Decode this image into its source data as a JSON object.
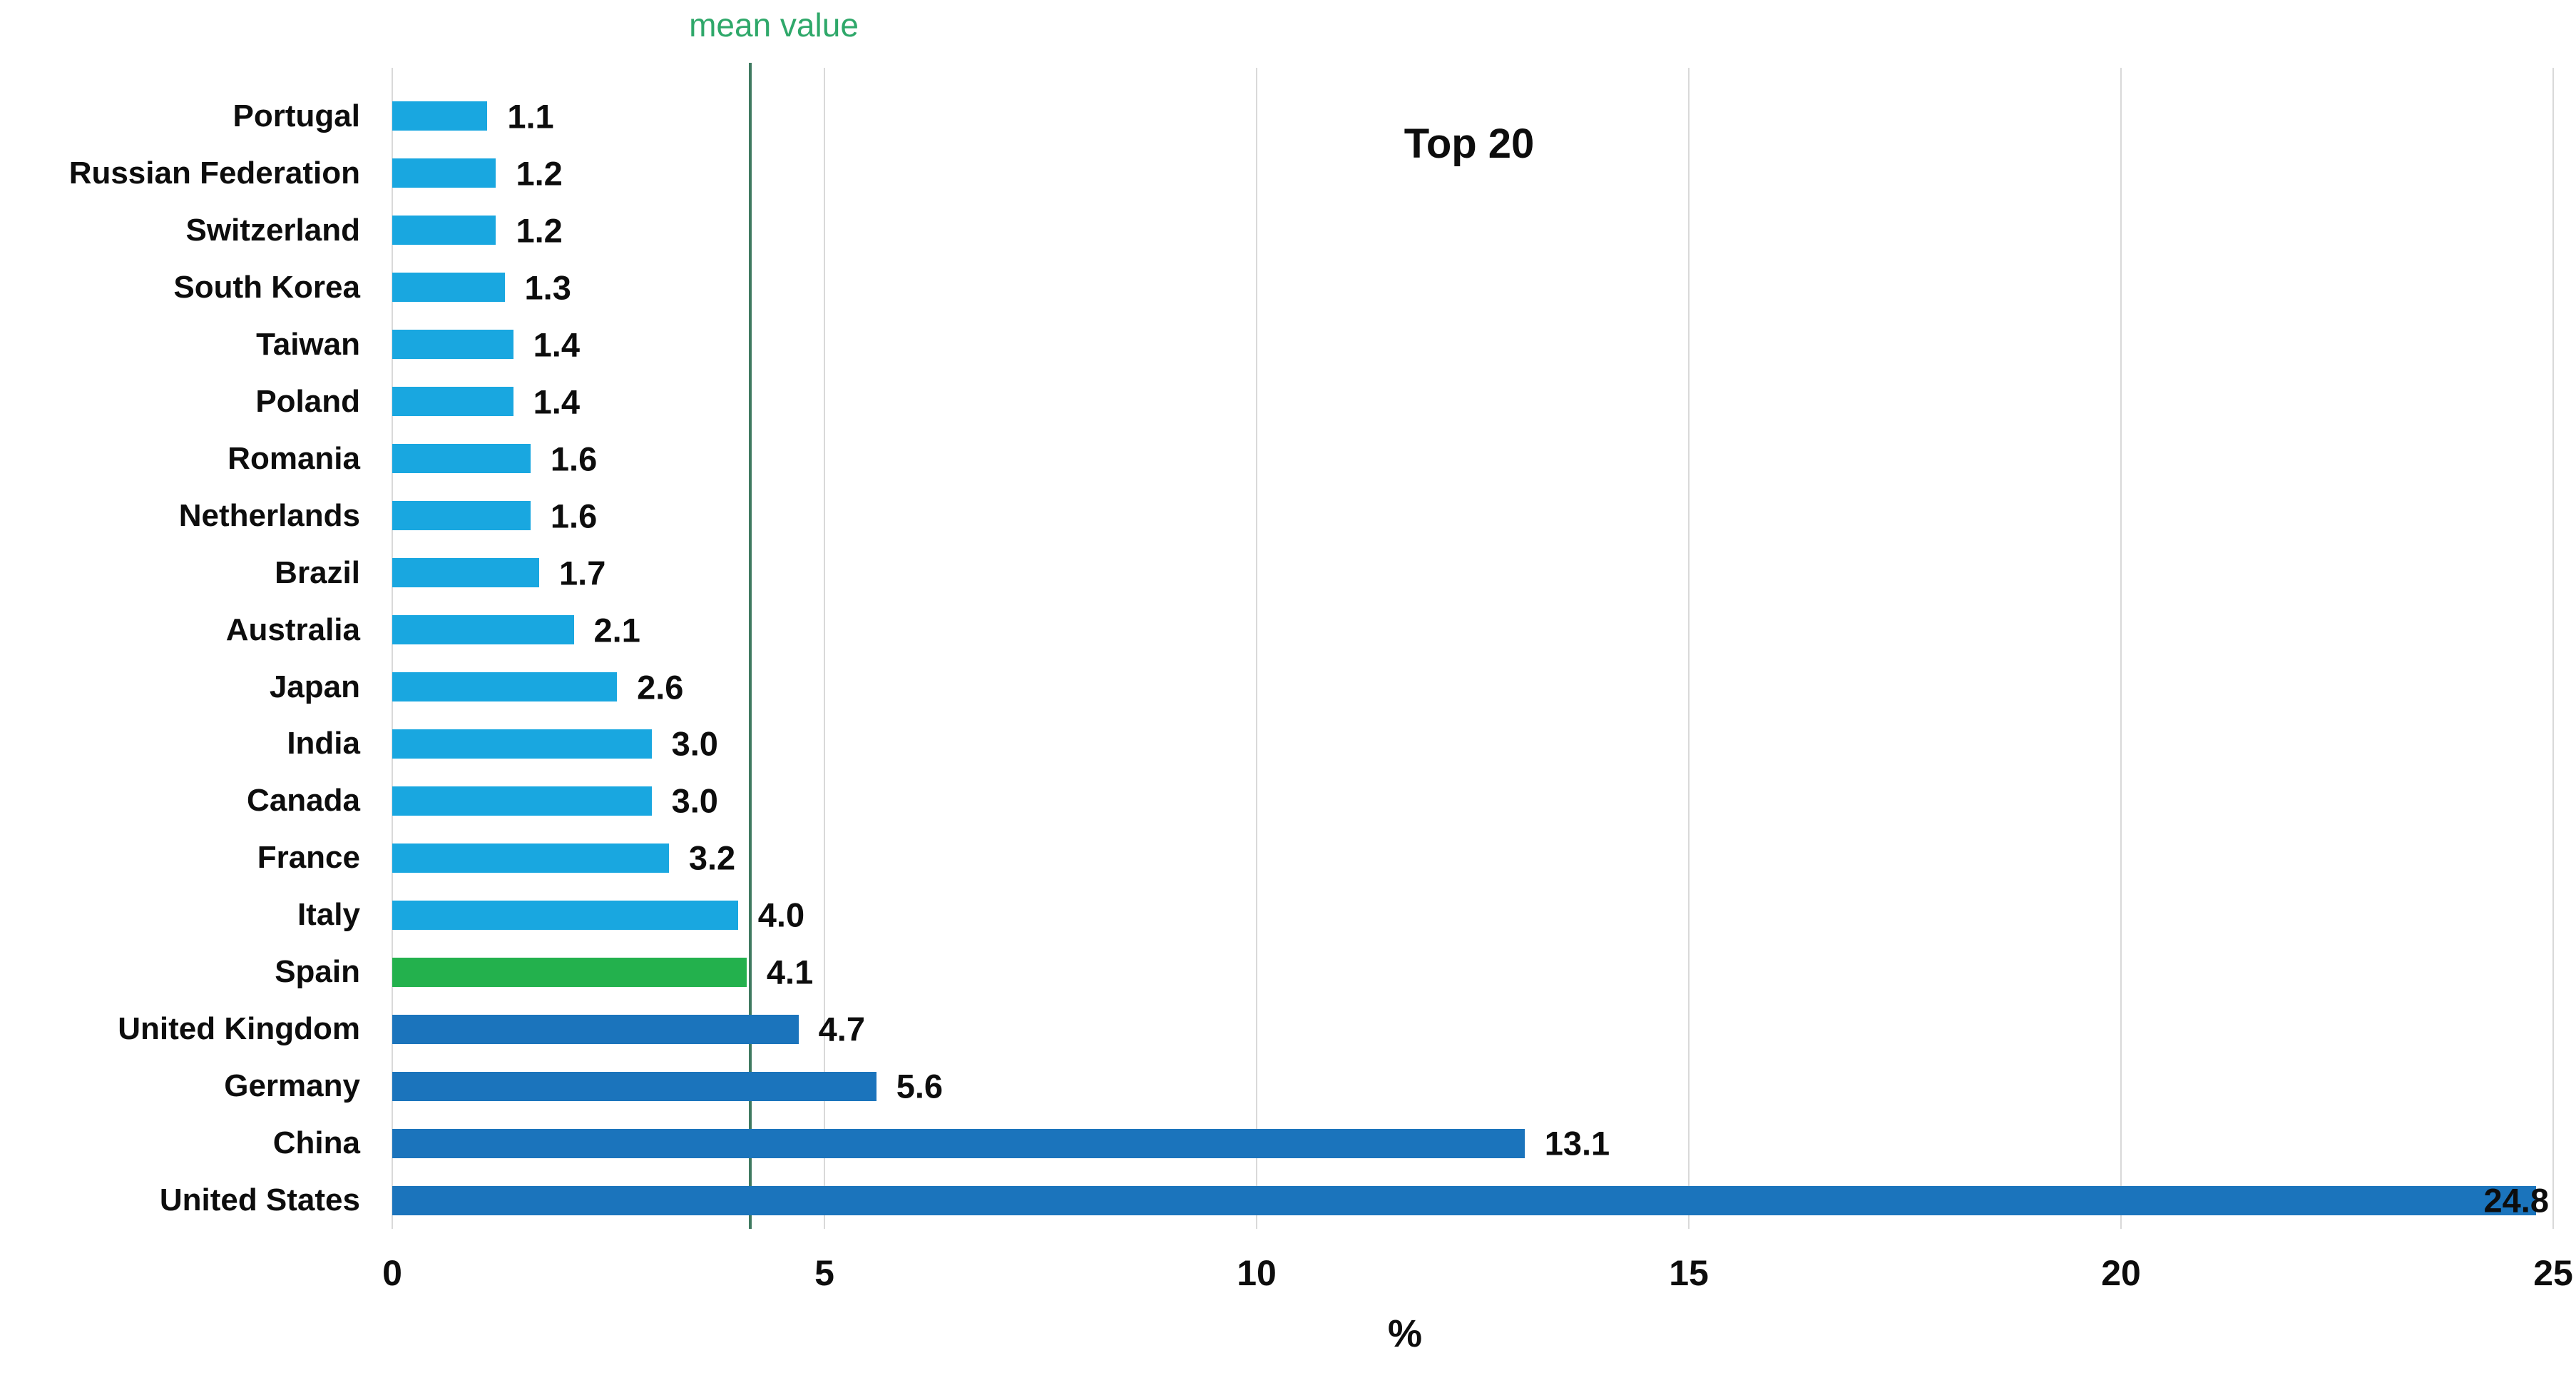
{
  "colors": {
    "light": "#19A7E0",
    "dark": "#1B74BC",
    "green": "#23B14D",
    "mean_line": "#3F7A60",
    "mean_text": "#2FA86A",
    "gridline": "#D9D9D9",
    "text": "#0D0D0D",
    "background": "#FFFFFF"
  },
  "chart_data": {
    "type": "bar",
    "orientation": "horizontal",
    "title": "Top 20",
    "xlabel": "%",
    "xlim": [
      0,
      25
    ],
    "x_ticks": [
      0,
      5,
      10,
      15,
      20,
      25
    ],
    "grid": "vertical",
    "legend": "none",
    "mean_line": {
      "label": "mean value",
      "value": 4.14
    },
    "categories": [
      "Portugal",
      "Russian Federation",
      "Switzerland",
      "South Korea",
      "Taiwan",
      "Poland",
      "Romania",
      "Netherlands",
      "Brazil",
      "Australia",
      "Japan",
      "India",
      "Canada",
      "France",
      "Italy",
      "Spain",
      "United Kingdom",
      "Germany",
      "China",
      "United States"
    ],
    "values": [
      1.1,
      1.2,
      1.2,
      1.3,
      1.4,
      1.4,
      1.6,
      1.6,
      1.7,
      2.1,
      2.6,
      3.0,
      3.0,
      3.2,
      4.0,
      4.1,
      4.7,
      5.6,
      13.1,
      24.8
    ],
    "value_labels": [
      "1.1",
      "1.2",
      "1.2",
      "1.3",
      "1.4",
      "1.4",
      "1.6",
      "1.6",
      "1.7",
      "2.1",
      "2.6",
      "3.0",
      "3.0",
      "3.2",
      "4.0",
      "4.1",
      "4.7",
      "5.6",
      "13.1",
      "24.8"
    ],
    "bar_groups": [
      "light",
      "light",
      "light",
      "light",
      "light",
      "light",
      "light",
      "light",
      "light",
      "light",
      "light",
      "light",
      "light",
      "light",
      "light",
      "green",
      "dark",
      "dark",
      "dark",
      "dark"
    ]
  }
}
